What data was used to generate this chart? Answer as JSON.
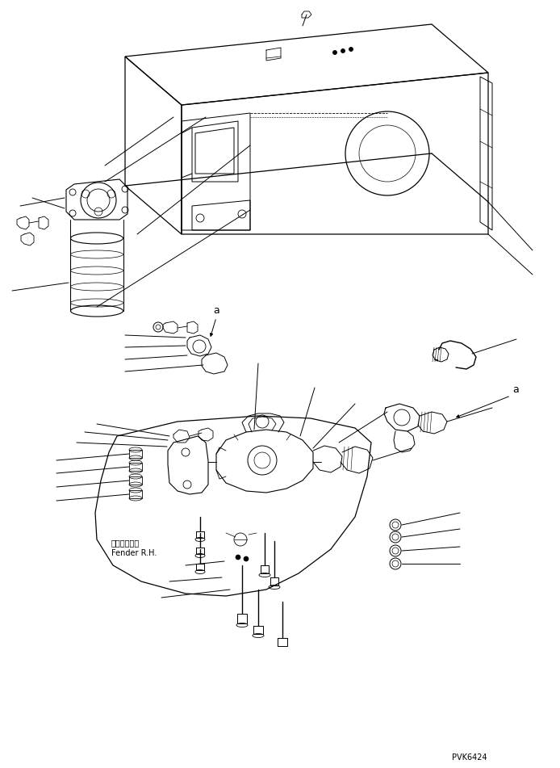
{
  "bg_color": "#ffffff",
  "line_color": "#000000",
  "figsize": [
    6.94,
    9.51
  ],
  "dpi": 100,
  "part_code": "PVK6424",
  "label_fender_jp": "フェンダ　右",
  "label_fender_en": "Fender R.H.",
  "label_a": "a"
}
